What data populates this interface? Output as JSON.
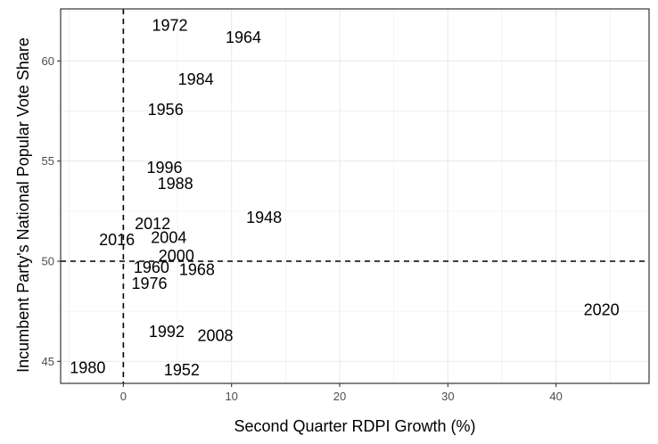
{
  "chart_data": {
    "type": "scatter",
    "title": "",
    "xlabel": "Second Quarter RDPI Growth (%)",
    "ylabel": "Incumbent Party's National Popular Vote Share",
    "xlim": [
      -5.8,
      48.6
    ],
    "ylim": [
      43.9,
      62.6
    ],
    "x_ticks": [
      0,
      10,
      20,
      30,
      40
    ],
    "y_ticks": [
      45,
      50,
      55,
      60
    ],
    "x_tick_labels": [
      "0",
      "10",
      "20",
      "30",
      "40"
    ],
    "y_tick_labels": [
      "45",
      "50",
      "55",
      "60"
    ],
    "grid": true,
    "reference_lines": {
      "x": 0,
      "y": 50,
      "style": "dashed"
    },
    "points": [
      {
        "label": "1948",
        "x": 13.0,
        "y": 52.2
      },
      {
        "label": "1952",
        "x": 5.4,
        "y": 44.6
      },
      {
        "label": "1956",
        "x": 3.9,
        "y": 57.6
      },
      {
        "label": "1960",
        "x": 2.6,
        "y": 49.7
      },
      {
        "label": "1964",
        "x": 11.1,
        "y": 61.2
      },
      {
        "label": "1968",
        "x": 6.8,
        "y": 49.6
      },
      {
        "label": "1972",
        "x": 4.3,
        "y": 61.8
      },
      {
        "label": "1976",
        "x": 2.4,
        "y": 48.9
      },
      {
        "label": "1980",
        "x": -3.3,
        "y": 44.7
      },
      {
        "label": "1984",
        "x": 6.7,
        "y": 59.1
      },
      {
        "label": "1988",
        "x": 4.8,
        "y": 53.9
      },
      {
        "label": "1992",
        "x": 4.0,
        "y": 46.5
      },
      {
        "label": "1996",
        "x": 3.8,
        "y": 54.7
      },
      {
        "label": "2000",
        "x": 4.9,
        "y": 50.3
      },
      {
        "label": "2004",
        "x": 4.2,
        "y": 51.2
      },
      {
        "label": "2008",
        "x": 8.5,
        "y": 46.3
      },
      {
        "label": "2012",
        "x": 2.7,
        "y": 51.9
      },
      {
        "label": "2016",
        "x": -0.6,
        "y": 51.1
      },
      {
        "label": "2020",
        "x": 44.2,
        "y": 47.6
      }
    ]
  }
}
